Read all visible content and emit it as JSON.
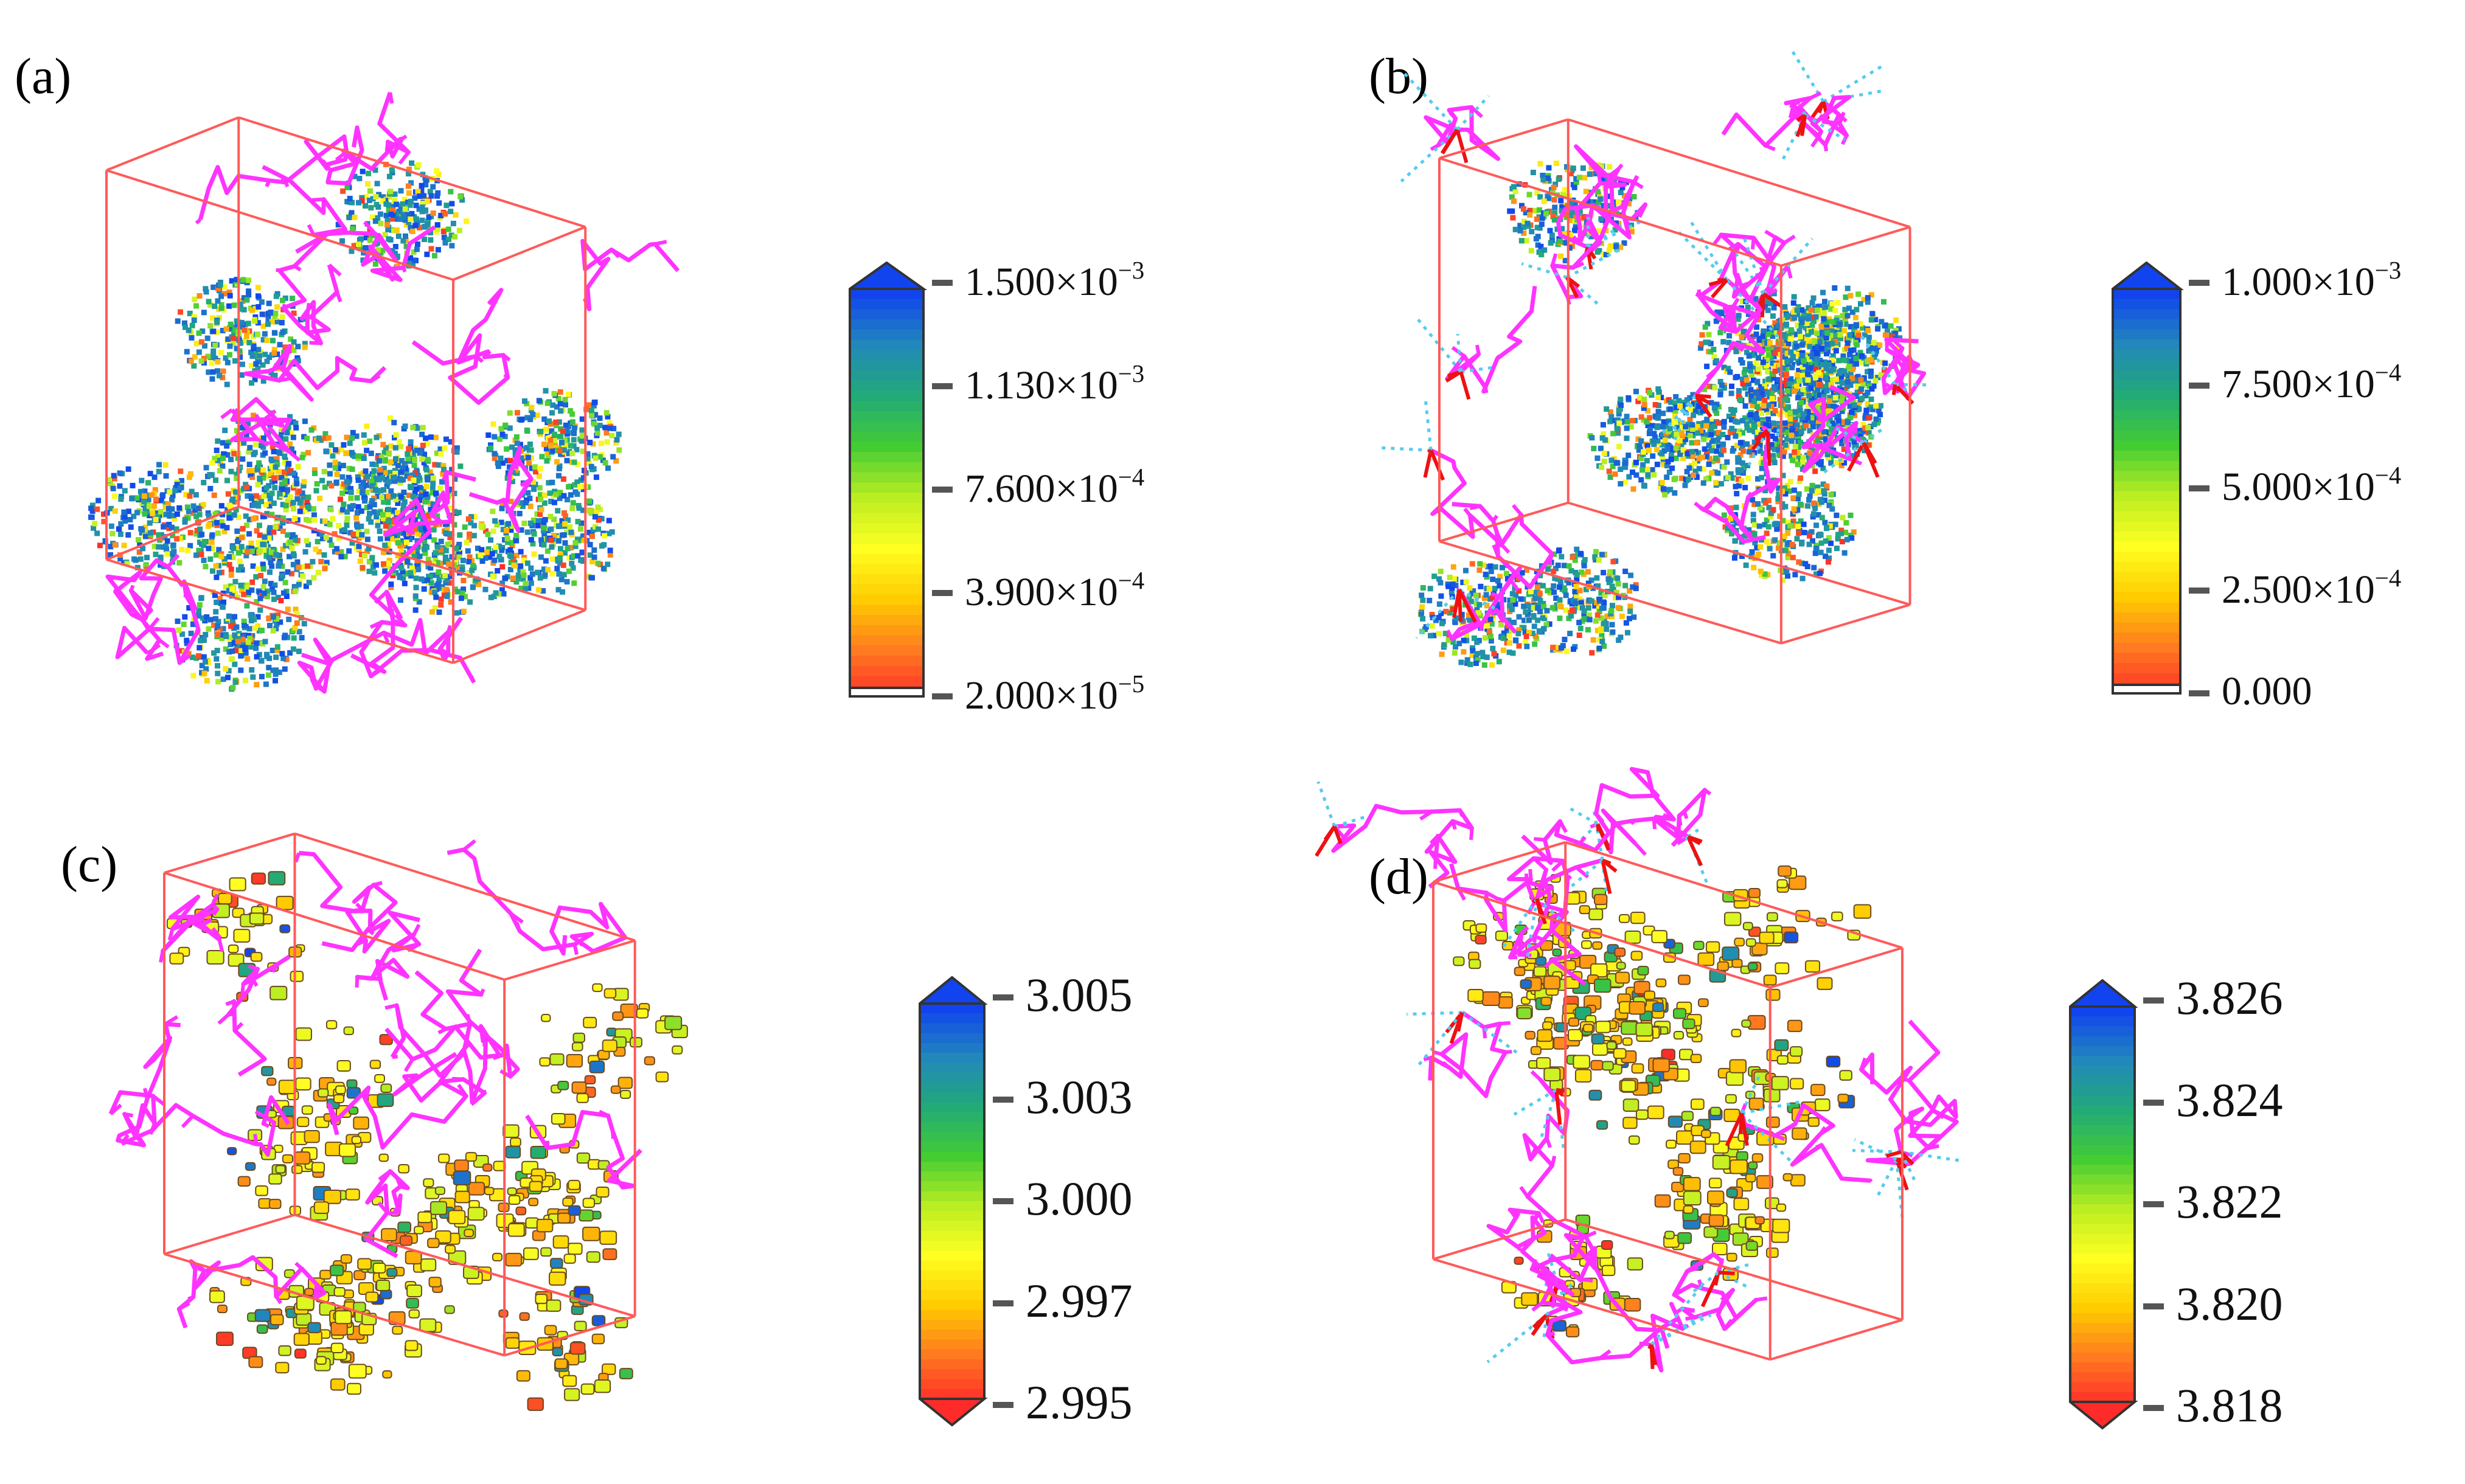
{
  "panels": [
    {
      "id": "a",
      "label": "(a)",
      "colorbar": {
        "ticks": [
          {
            "mantissa": "1.500",
            "exp": "−3"
          },
          {
            "mantissa": "1.130",
            "exp": "−3"
          },
          {
            "mantissa": "7.600",
            "exp": "−4"
          },
          {
            "mantissa": "3.900",
            "exp": "−4"
          },
          {
            "mantissa": "2.000",
            "exp": "−5"
          }
        ]
      }
    },
    {
      "id": "b",
      "label": "(b)",
      "colorbar": {
        "ticks": [
          {
            "mantissa": "1.000",
            "exp": "−3"
          },
          {
            "mantissa": "7.500",
            "exp": "−4"
          },
          {
            "mantissa": "5.000",
            "exp": "−4"
          },
          {
            "mantissa": "2.500",
            "exp": "−4"
          },
          {
            "mantissa": "0.000",
            "exp": ""
          }
        ]
      }
    },
    {
      "id": "c",
      "label": "(c)",
      "colorbar": {
        "ticks": [
          {
            "mantissa": "3.005",
            "exp": ""
          },
          {
            "mantissa": "3.003",
            "exp": ""
          },
          {
            "mantissa": "3.000",
            "exp": ""
          },
          {
            "mantissa": "2.997",
            "exp": ""
          },
          {
            "mantissa": "2.995",
            "exp": ""
          }
        ]
      }
    },
    {
      "id": "d",
      "label": "(d)",
      "colorbar": {
        "ticks": [
          {
            "mantissa": "3.826",
            "exp": ""
          },
          {
            "mantissa": "3.824",
            "exp": ""
          },
          {
            "mantissa": "3.822",
            "exp": ""
          },
          {
            "mantissa": "3.820",
            "exp": ""
          },
          {
            "mantissa": "3.818",
            "exp": ""
          }
        ]
      }
    }
  ],
  "colors": {
    "cube_edge": "#ff5a5a",
    "polymer_chain": "#ff33ff",
    "hbond": "#55ccee",
    "red_bond": "#ee1111",
    "colormap": [
      "#ff2a2a",
      "#ff7a20",
      "#ffcc00",
      "#ffff22",
      "#bbee22",
      "#44cc33",
      "#22aa77",
      "#2288bb",
      "#1144ee"
    ]
  }
}
